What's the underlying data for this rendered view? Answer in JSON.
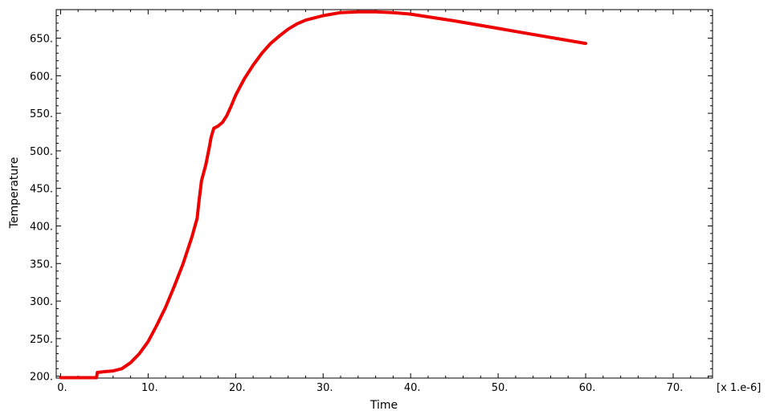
{
  "chart_data": {
    "type": "line",
    "title": "",
    "xlabel": "Time",
    "ylabel": "Temperature",
    "x_multiplier_label": "[x 1.e-6]",
    "xlim": [
      -0.5,
      74.5
    ],
    "ylim": [
      197.5,
      688
    ],
    "x_ticks": [
      0,
      10,
      20,
      30,
      40,
      50,
      60,
      70
    ],
    "x_tick_labels": [
      "0.",
      "10.",
      "20.",
      "30.",
      "40.",
      "50.",
      "60.",
      "70."
    ],
    "y_ticks": [
      200,
      250,
      300,
      350,
      400,
      450,
      500,
      550,
      600,
      650
    ],
    "y_tick_labels": [
      "200.",
      "250.",
      "300.",
      "350.",
      "400.",
      "450.",
      "500.",
      "550.",
      "600.",
      "650."
    ],
    "grid": false,
    "colors": {
      "series": "#ee0000",
      "axis": "#000000",
      "background": "#ffffff"
    },
    "series": [
      {
        "x": [
          0,
          1,
          2,
          3,
          4.1,
          4.2,
          5,
          6,
          7,
          8,
          9,
          10,
          11,
          12,
          13,
          14,
          15,
          15.6,
          15.8,
          16.1,
          16.6,
          17,
          17.2,
          17.5,
          18,
          18.5,
          19,
          19.5,
          20,
          21,
          22,
          23,
          24,
          25,
          26,
          27,
          28,
          30,
          32,
          34,
          36,
          38,
          40,
          45,
          50,
          55,
          60
        ],
        "y": [
          198,
          198,
          198,
          198,
          198,
          205,
          206,
          207,
          210,
          218,
          230,
          246,
          268,
          292,
          320,
          350,
          385,
          410,
          432,
          460,
          482,
          505,
          518,
          530,
          533,
          538,
          547,
          560,
          574,
          596,
          614,
          630,
          643,
          653,
          662,
          669,
          674,
          680,
          684,
          685,
          685,
          684,
          682,
          673,
          663,
          653,
          643
        ]
      }
    ]
  }
}
